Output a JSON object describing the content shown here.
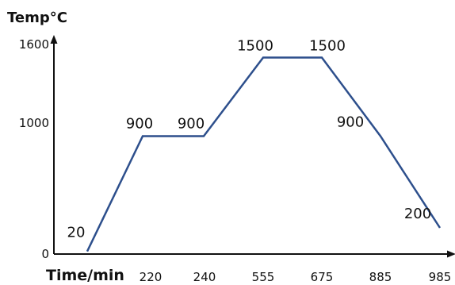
{
  "chart_data": {
    "type": "line",
    "title": "",
    "ylabel": "Temp°C",
    "xlabel": "Time/min",
    "ylim": [
      0,
      1600
    ],
    "y_ticks": [
      "0",
      "1000",
      "1600"
    ],
    "x": [
      "",
      "220",
      "240",
      "555",
      "675",
      "885",
      "985"
    ],
    "series": [
      {
        "values": [
          20,
          900,
          900,
          1500,
          1500,
          900,
          200
        ],
        "data_labels": [
          "20",
          "900",
          "900",
          "1500",
          "1500",
          "900",
          "200"
        ]
      }
    ],
    "grid": false,
    "legend": "none",
    "colors": {
      "line": "#2d4f8c",
      "axis": "#111111"
    }
  }
}
